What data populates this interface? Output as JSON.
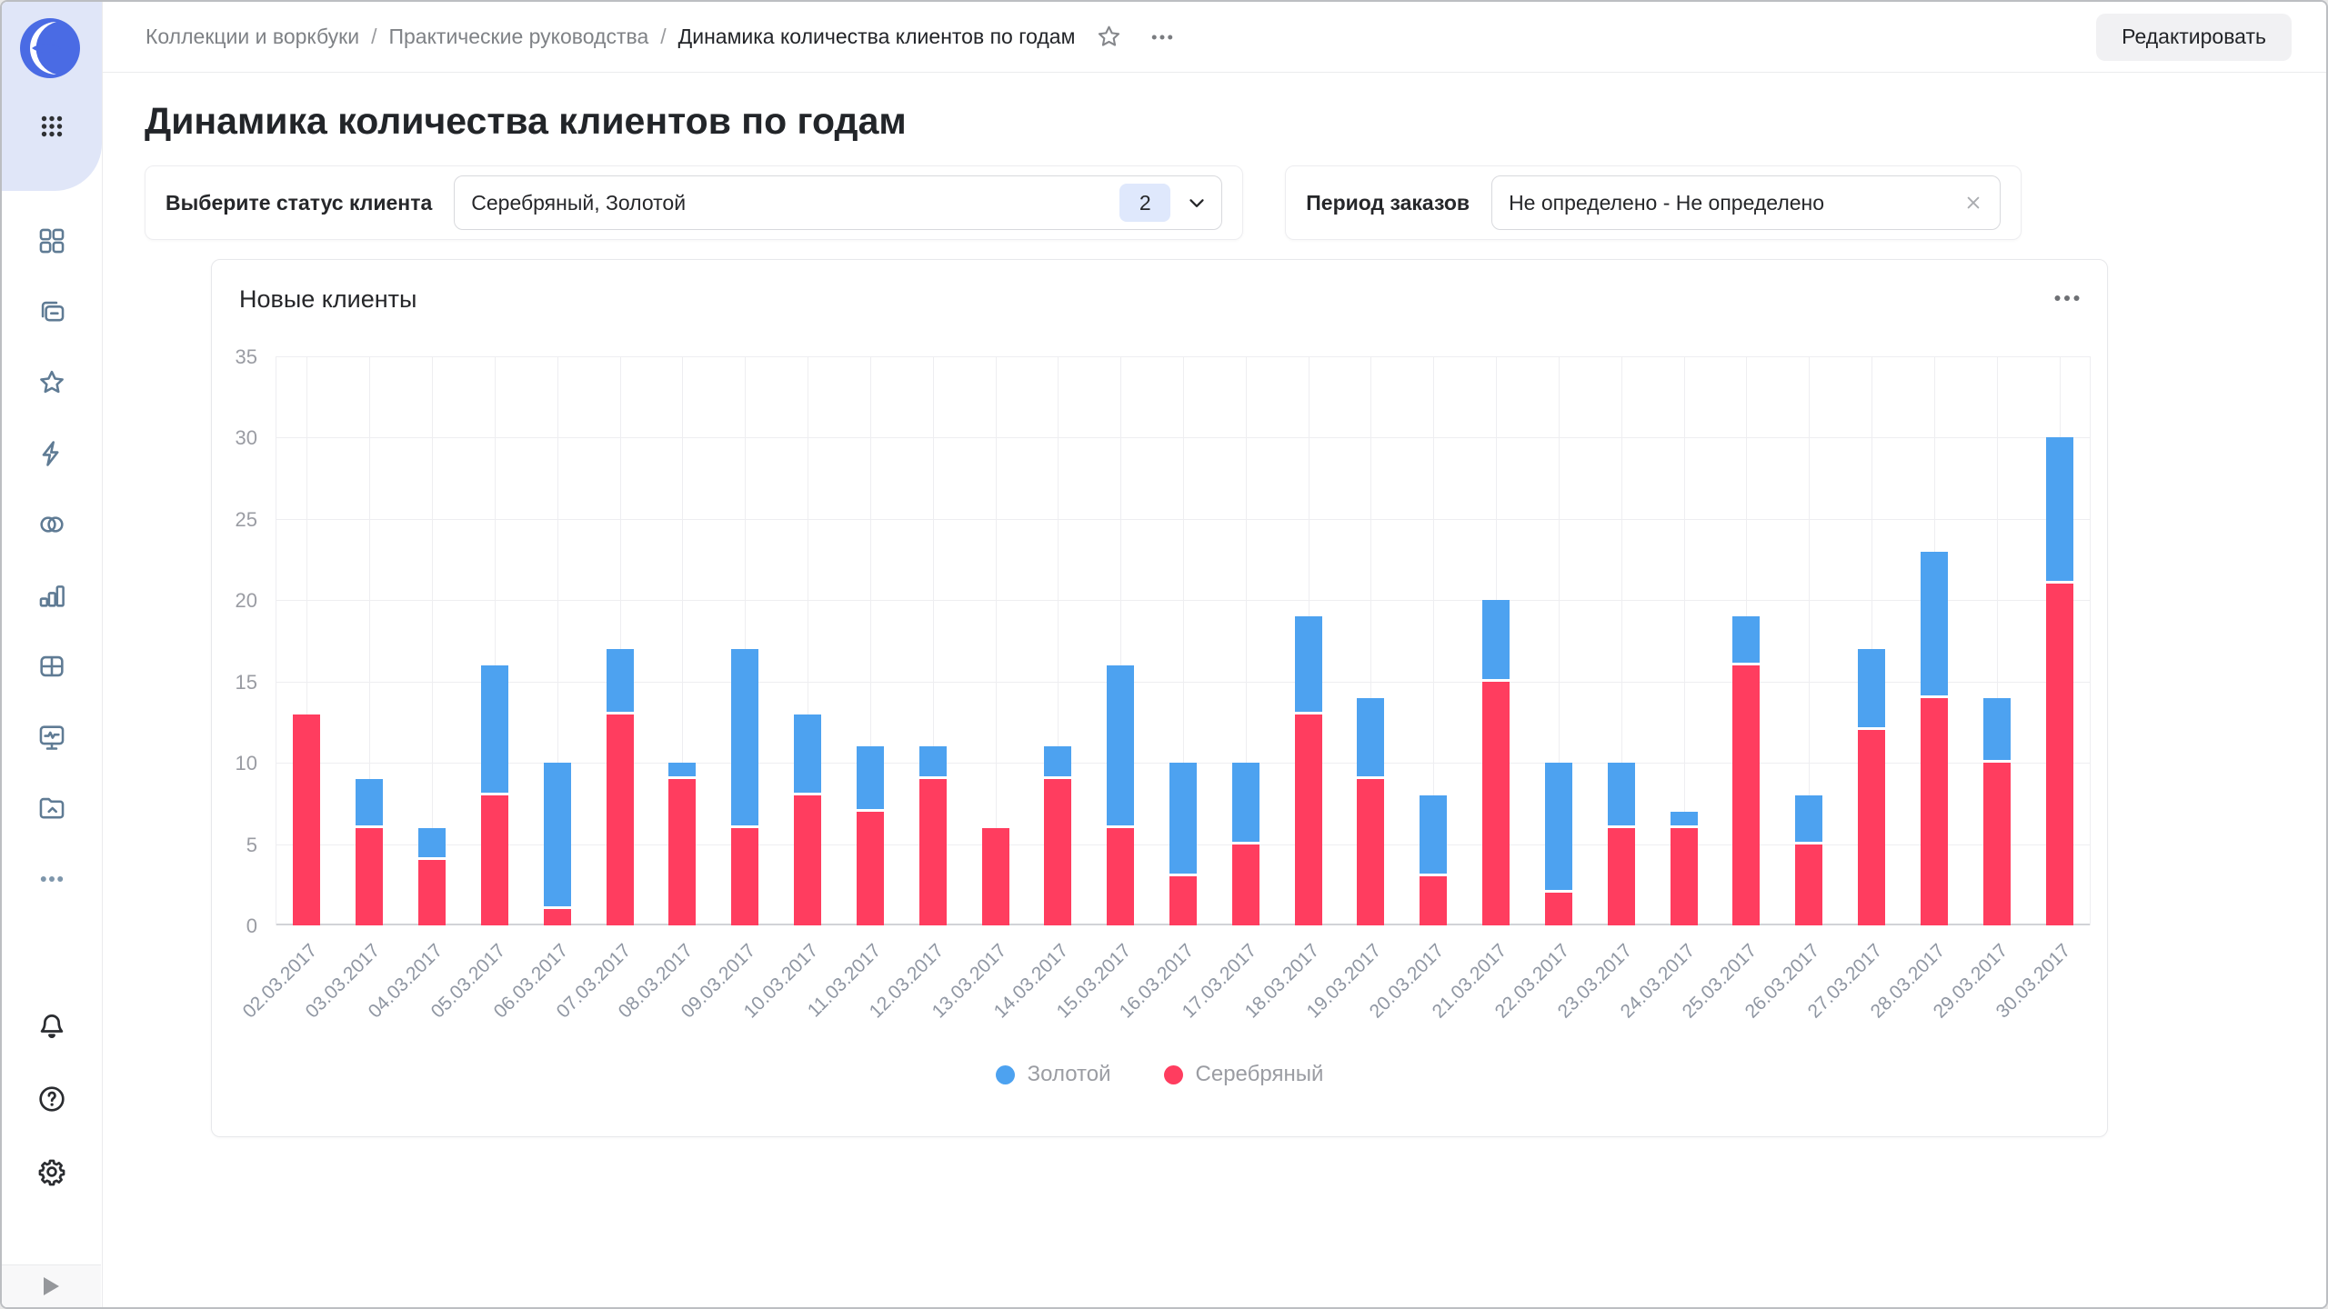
{
  "sidebar": {
    "logo_icon": "datalens-logo",
    "apps_icon": "apps-grid-icon",
    "nav_icons": [
      "dashboards-icon",
      "workbooks-icon",
      "favorites-star-icon",
      "quick-actions-lightning-icon",
      "connections-circles-icon",
      "charts-bar-icon",
      "datasets-table-icon",
      "monitoring-screen-icon",
      "storage-folder-icon",
      "more-ellipsis-icon"
    ],
    "bottom_icons": [
      "notifications-bell-icon",
      "help-question-icon",
      "settings-gear-icon"
    ],
    "footer_icon": "expand-panel-icon"
  },
  "topbar": {
    "breadcrumbs": [
      "Коллекции и воркбуки",
      "Практические руководства",
      "Динамика количества клиентов по годам"
    ],
    "separator": "/",
    "edit_button": "Редактировать"
  },
  "page": {
    "title": "Динамика количества клиентов по годам"
  },
  "filters": {
    "status": {
      "label": "Выберите статус клиента",
      "value": "Серебряный, Золотой",
      "count_badge": "2"
    },
    "period": {
      "label": "Период заказов",
      "value": "Не определено - Не определено"
    }
  },
  "chart_card": {
    "title": "Новые клиенты"
  },
  "chart_data": {
    "type": "bar",
    "stacked": true,
    "title": "Новые клиенты",
    "xlabel": "",
    "ylabel": "",
    "ylim": [
      0,
      35
    ],
    "ytick_step": 5,
    "grid": true,
    "legend_position": "bottom",
    "categories": [
      "02.03.2017",
      "03.03.2017",
      "04.03.2017",
      "05.03.2017",
      "06.03.2017",
      "07.03.2017",
      "08.03.2017",
      "09.03.2017",
      "10.03.2017",
      "11.03.2017",
      "12.03.2017",
      "13.03.2017",
      "14.03.2017",
      "15.03.2017",
      "16.03.2017",
      "17.03.2017",
      "18.03.2017",
      "19.03.2017",
      "20.03.2017",
      "21.03.2017",
      "22.03.2017",
      "23.03.2017",
      "24.03.2017",
      "25.03.2017",
      "26.03.2017",
      "27.03.2017",
      "28.03.2017",
      "29.03.2017",
      "30.03.2017"
    ],
    "series": [
      {
        "name": "Золотой",
        "color": "#4da2f0",
        "values": [
          0,
          3,
          2,
          8,
          9,
          4,
          1,
          11,
          5,
          4,
          2,
          0,
          2,
          10,
          7,
          5,
          6,
          5,
          5,
          5,
          8,
          4,
          1,
          3,
          3,
          5,
          9,
          4,
          9
        ]
      },
      {
        "name": "Серебряный",
        "color": "#ff3d5f",
        "values": [
          13,
          6,
          4,
          8,
          1,
          13,
          9,
          6,
          8,
          7,
          9,
          6,
          9,
          6,
          3,
          5,
          13,
          9,
          3,
          15,
          2,
          6,
          6,
          16,
          5,
          12,
          14,
          10,
          21
        ]
      }
    ],
    "stack_order": [
      "Серебряный",
      "Золотой"
    ]
  }
}
